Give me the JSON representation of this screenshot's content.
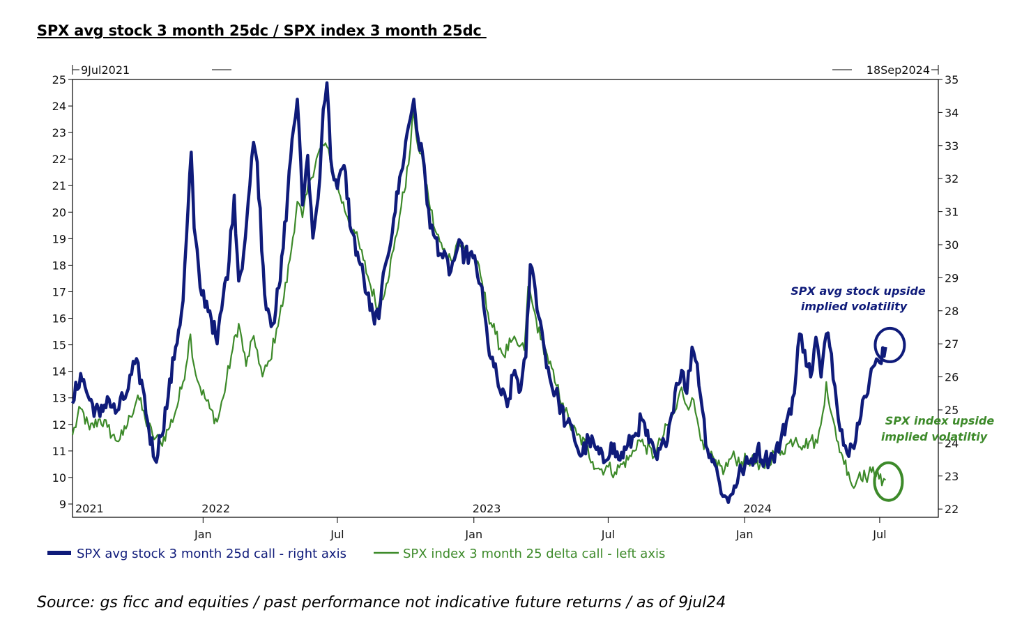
{
  "title": "SPX avg stock 3 month 25dc / SPX index 3 month 25dc ",
  "source": "Source: gs ficc and equities / past performance not indicative future returns / as of 9jul24",
  "chart_data": {
    "type": "line",
    "date_range_labels": {
      "start": "9Jul2021",
      "end": "18Sep2024"
    },
    "x_range": [
      "2021-07-09",
      "2024-09-18"
    ],
    "year_labels": [
      {
        "label": "2021",
        "date": "2021-07-09"
      },
      {
        "label": "2022",
        "date": "2022-01-01"
      },
      {
        "label": "2023",
        "date": "2023-01-01"
      },
      {
        "label": "2024",
        "date": "2024-01-01"
      }
    ],
    "month_ticks": [
      {
        "label": "Jan",
        "date": "2022-01-01"
      },
      {
        "label": "Jul",
        "date": "2022-07-01"
      },
      {
        "label": "Jan",
        "date": "2023-01-01"
      },
      {
        "label": "Jul",
        "date": "2023-07-01"
      },
      {
        "label": "Jan",
        "date": "2024-01-01"
      },
      {
        "label": "Jul",
        "date": "2024-07-01"
      }
    ],
    "left_axis": {
      "min": 8.5,
      "max": 25,
      "ticks": [
        "9",
        "10",
        "11",
        "12",
        "13",
        "14",
        "15",
        "16",
        "17",
        "18",
        "19",
        "20",
        "21",
        "22",
        "23",
        "24",
        "25"
      ]
    },
    "right_axis": {
      "min": 21.75,
      "max": 35,
      "ticks": [
        "22",
        "23",
        "24",
        "25",
        "26",
        "27",
        "28",
        "29",
        "30",
        "31",
        "32",
        "33",
        "34",
        "35"
      ]
    },
    "series": [
      {
        "name": "SPX avg stock 3 month 25d call - right axis",
        "axis": "right",
        "color": "#0f1b7a",
        "points": [
          [
            "2021-07-09",
            25.2
          ],
          [
            "2021-07-20",
            26.1
          ],
          [
            "2021-08-01",
            25.3
          ],
          [
            "2021-08-15",
            24.8
          ],
          [
            "2021-08-25",
            25.4
          ],
          [
            "2021-09-05",
            24.9
          ],
          [
            "2021-09-20",
            25.5
          ],
          [
            "2021-10-01",
            26.4
          ],
          [
            "2021-10-10",
            25.9
          ],
          [
            "2021-10-20",
            24.4
          ],
          [
            "2021-10-28",
            23.5
          ],
          [
            "2021-11-05",
            24.2
          ],
          [
            "2021-11-15",
            25.4
          ],
          [
            "2021-11-25",
            26.9
          ],
          [
            "2021-12-05",
            28.3
          ],
          [
            "2021-12-12",
            31.2
          ],
          [
            "2021-12-16",
            32.8
          ],
          [
            "2021-12-20",
            30.5
          ],
          [
            "2021-12-28",
            28.7
          ],
          [
            "2022-01-10",
            28.0
          ],
          [
            "2022-01-20",
            27.0
          ],
          [
            "2022-01-28",
            28.4
          ],
          [
            "2022-02-05",
            29.5
          ],
          [
            "2022-02-12",
            31.5
          ],
          [
            "2022-02-18",
            28.9
          ],
          [
            "2022-02-25",
            29.8
          ],
          [
            "2022-03-05",
            31.8
          ],
          [
            "2022-03-10",
            33.1
          ],
          [
            "2022-03-15",
            32.5
          ],
          [
            "2022-03-25",
            28.5
          ],
          [
            "2022-04-05",
            27.6
          ],
          [
            "2022-04-15",
            28.9
          ],
          [
            "2022-04-25",
            31.5
          ],
          [
            "2022-05-01",
            33.2
          ],
          [
            "2022-05-08",
            34.4
          ],
          [
            "2022-05-15",
            31.2
          ],
          [
            "2022-05-22",
            32.7
          ],
          [
            "2022-05-29",
            30.2
          ],
          [
            "2022-06-05",
            31.4
          ],
          [
            "2022-06-12",
            34.1
          ],
          [
            "2022-06-17",
            34.9
          ],
          [
            "2022-06-22",
            32.6
          ],
          [
            "2022-07-01",
            31.7
          ],
          [
            "2022-07-10",
            32.4
          ],
          [
            "2022-07-20",
            30.4
          ],
          [
            "2022-08-01",
            29.4
          ],
          [
            "2022-08-10",
            28.5
          ],
          [
            "2022-08-20",
            27.6
          ],
          [
            "2022-08-28",
            28.2
          ],
          [
            "2022-09-05",
            29.5
          ],
          [
            "2022-09-15",
            30.8
          ],
          [
            "2022-09-25",
            32.2
          ],
          [
            "2022-10-05",
            33.6
          ],
          [
            "2022-10-12",
            34.4
          ],
          [
            "2022-10-18",
            33.2
          ],
          [
            "2022-10-26",
            32.4
          ],
          [
            "2022-11-03",
            30.5
          ],
          [
            "2022-11-10",
            30.2
          ],
          [
            "2022-11-20",
            29.6
          ],
          [
            "2022-12-01",
            29.2
          ],
          [
            "2022-12-10",
            29.9
          ],
          [
            "2022-12-20",
            29.7
          ],
          [
            "2022-12-31",
            29.6
          ],
          [
            "2023-01-10",
            28.8
          ],
          [
            "2023-01-20",
            27.0
          ],
          [
            "2023-01-28",
            26.3
          ],
          [
            "2023-02-05",
            25.6
          ],
          [
            "2023-02-15",
            25.1
          ],
          [
            "2023-02-25",
            26.2
          ],
          [
            "2023-03-05",
            25.6
          ],
          [
            "2023-03-12",
            26.6
          ],
          [
            "2023-03-18",
            29.4
          ],
          [
            "2023-03-25",
            28.6
          ],
          [
            "2023-04-05",
            27.0
          ],
          [
            "2023-04-15",
            25.8
          ],
          [
            "2023-04-25",
            25.3
          ],
          [
            "2023-05-05",
            24.6
          ],
          [
            "2023-05-15",
            24.3
          ],
          [
            "2023-05-25",
            23.6
          ],
          [
            "2023-06-05",
            24.1
          ],
          [
            "2023-06-15",
            23.8
          ],
          [
            "2023-06-25",
            23.4
          ],
          [
            "2023-07-05",
            24.0
          ],
          [
            "2023-07-15",
            23.5
          ],
          [
            "2023-07-25",
            23.8
          ],
          [
            "2023-08-05",
            24.2
          ],
          [
            "2023-08-15",
            24.7
          ],
          [
            "2023-08-25",
            24.0
          ],
          [
            "2023-09-05",
            23.5
          ],
          [
            "2023-09-15",
            24.0
          ],
          [
            "2023-09-25",
            24.9
          ],
          [
            "2023-10-01",
            25.8
          ],
          [
            "2023-10-08",
            26.2
          ],
          [
            "2023-10-15",
            25.5
          ],
          [
            "2023-10-22",
            26.9
          ],
          [
            "2023-10-29",
            26.4
          ],
          [
            "2023-11-05",
            25.0
          ],
          [
            "2023-11-12",
            23.8
          ],
          [
            "2023-11-20",
            23.5
          ],
          [
            "2023-11-28",
            22.8
          ],
          [
            "2023-12-05",
            22.4
          ],
          [
            "2023-12-10",
            22.2
          ],
          [
            "2023-12-18",
            22.7
          ],
          [
            "2023-12-28",
            23.2
          ],
          [
            "2024-01-08",
            23.4
          ],
          [
            "2024-01-18",
            23.8
          ],
          [
            "2024-01-28",
            23.5
          ],
          [
            "2024-02-08",
            23.6
          ],
          [
            "2024-02-18",
            24.0
          ],
          [
            "2024-02-28",
            24.8
          ],
          [
            "2024-03-08",
            25.5
          ],
          [
            "2024-03-15",
            27.3
          ],
          [
            "2024-03-22",
            26.8
          ],
          [
            "2024-03-30",
            26.0
          ],
          [
            "2024-04-06",
            27.2
          ],
          [
            "2024-04-13",
            26.0
          ],
          [
            "2024-04-20",
            27.3
          ],
          [
            "2024-04-27",
            26.7
          ],
          [
            "2024-05-04",
            25.2
          ],
          [
            "2024-05-11",
            24.4
          ],
          [
            "2024-05-18",
            23.7
          ],
          [
            "2024-05-25",
            23.9
          ],
          [
            "2024-06-01",
            24.6
          ],
          [
            "2024-06-08",
            25.3
          ],
          [
            "2024-06-15",
            25.5
          ],
          [
            "2024-06-22",
            26.3
          ],
          [
            "2024-06-29",
            26.5
          ],
          [
            "2024-07-09",
            26.9
          ]
        ]
      },
      {
        "name": "SPX index 3 month 25 delta call - left axis",
        "axis": "left",
        "color": "#3d8a2a",
        "points": [
          [
            "2021-07-09",
            11.6
          ],
          [
            "2021-07-20",
            12.6
          ],
          [
            "2021-08-01",
            11.8
          ],
          [
            "2021-08-15",
            12.2
          ],
          [
            "2021-08-25",
            11.9
          ],
          [
            "2021-09-05",
            11.4
          ],
          [
            "2021-09-15",
            11.6
          ],
          [
            "2021-09-25",
            12.3
          ],
          [
            "2021-10-05",
            13.1
          ],
          [
            "2021-10-15",
            12.2
          ],
          [
            "2021-10-25",
            11.6
          ],
          [
            "2021-11-05",
            11.3
          ],
          [
            "2021-11-15",
            11.8
          ],
          [
            "2021-11-25",
            12.5
          ],
          [
            "2021-12-05",
            13.6
          ],
          [
            "2021-12-15",
            15.4
          ],
          [
            "2021-12-20",
            14.2
          ],
          [
            "2021-12-28",
            13.4
          ],
          [
            "2022-01-10",
            12.6
          ],
          [
            "2022-01-20",
            12.1
          ],
          [
            "2022-01-28",
            13.0
          ],
          [
            "2022-02-08",
            14.6
          ],
          [
            "2022-02-18",
            15.8
          ],
          [
            "2022-02-28",
            14.2
          ],
          [
            "2022-03-08",
            15.2
          ],
          [
            "2022-03-15",
            14.8
          ],
          [
            "2022-03-22",
            13.8
          ],
          [
            "2022-04-01",
            14.4
          ],
          [
            "2022-04-10",
            15.6
          ],
          [
            "2022-04-20",
            16.8
          ],
          [
            "2022-04-28",
            18.2
          ],
          [
            "2022-05-08",
            20.4
          ],
          [
            "2022-05-15",
            19.8
          ],
          [
            "2022-05-25",
            21.2
          ],
          [
            "2022-06-05",
            22.2
          ],
          [
            "2022-06-15",
            22.6
          ],
          [
            "2022-06-25",
            21.5
          ],
          [
            "2022-07-05",
            20.6
          ],
          [
            "2022-07-15",
            19.8
          ],
          [
            "2022-07-25",
            19.2
          ],
          [
            "2022-08-05",
            18.2
          ],
          [
            "2022-08-15",
            17.2
          ],
          [
            "2022-08-25",
            16.4
          ],
          [
            "2022-09-05",
            17.3
          ],
          [
            "2022-09-15",
            18.6
          ],
          [
            "2022-09-25",
            20.2
          ],
          [
            "2022-10-05",
            21.8
          ],
          [
            "2022-10-12",
            23.8
          ],
          [
            "2022-10-18",
            22.4
          ],
          [
            "2022-10-25",
            21.7
          ],
          [
            "2022-11-01",
            20.5
          ],
          [
            "2022-11-10",
            19.3
          ],
          [
            "2022-11-20",
            18.6
          ],
          [
            "2022-12-01",
            18.2
          ],
          [
            "2022-12-10",
            18.9
          ],
          [
            "2022-12-20",
            18.6
          ],
          [
            "2022-12-31",
            18.4
          ],
          [
            "2023-01-10",
            17.6
          ],
          [
            "2023-01-20",
            16.2
          ],
          [
            "2023-01-30",
            15.4
          ],
          [
            "2023-02-10",
            14.6
          ],
          [
            "2023-02-20",
            15.1
          ],
          [
            "2023-03-01",
            15.0
          ],
          [
            "2023-03-10",
            14.8
          ],
          [
            "2023-03-15",
            17.2
          ],
          [
            "2023-03-22",
            16.4
          ],
          [
            "2023-04-01",
            15.2
          ],
          [
            "2023-04-10",
            14.6
          ],
          [
            "2023-04-20",
            13.6
          ],
          [
            "2023-05-01",
            12.8
          ],
          [
            "2023-05-10",
            12.0
          ],
          [
            "2023-05-20",
            11.6
          ],
          [
            "2023-06-01",
            11.2
          ],
          [
            "2023-06-10",
            10.6
          ],
          [
            "2023-06-20",
            10.3
          ],
          [
            "2023-07-01",
            10.4
          ],
          [
            "2023-07-10",
            10.2
          ],
          [
            "2023-07-20",
            10.5
          ],
          [
            "2023-08-01",
            10.8
          ],
          [
            "2023-08-10",
            11.4
          ],
          [
            "2023-08-20",
            11.2
          ],
          [
            "2023-09-01",
            10.8
          ],
          [
            "2023-09-10",
            11.4
          ],
          [
            "2023-09-20",
            12.0
          ],
          [
            "2023-10-01",
            12.6
          ],
          [
            "2023-10-08",
            13.4
          ],
          [
            "2023-10-15",
            12.7
          ],
          [
            "2023-10-22",
            13.0
          ],
          [
            "2023-10-29",
            12.2
          ],
          [
            "2023-11-05",
            11.4
          ],
          [
            "2023-11-15",
            10.8
          ],
          [
            "2023-11-25",
            10.4
          ],
          [
            "2023-12-05",
            10.3
          ],
          [
            "2023-12-15",
            10.8
          ],
          [
            "2023-12-28",
            10.6
          ],
          [
            "2024-01-10",
            10.7
          ],
          [
            "2024-01-20",
            10.3
          ],
          [
            "2024-02-01",
            10.6
          ],
          [
            "2024-02-10",
            10.9
          ],
          [
            "2024-02-20",
            11.0
          ],
          [
            "2024-03-01",
            11.3
          ],
          [
            "2024-03-10",
            11.5
          ],
          [
            "2024-03-20",
            11.2
          ],
          [
            "2024-03-30",
            11.4
          ],
          [
            "2024-04-08",
            11.3
          ],
          [
            "2024-04-15",
            12.4
          ],
          [
            "2024-04-20",
            13.6
          ],
          [
            "2024-04-27",
            12.4
          ],
          [
            "2024-05-04",
            11.4
          ],
          [
            "2024-05-12",
            10.8
          ],
          [
            "2024-05-20",
            10.2
          ],
          [
            "2024-05-27",
            9.6
          ],
          [
            "2024-06-04",
            10.2
          ],
          [
            "2024-06-12",
            10.0
          ],
          [
            "2024-06-20",
            10.2
          ],
          [
            "2024-06-28",
            10.3
          ],
          [
            "2024-07-04",
            9.7
          ],
          [
            "2024-07-09",
            9.9
          ]
        ]
      }
    ],
    "annotations": [
      {
        "id": "stock",
        "lines": [
          "SPX avg stock upside",
          "implied volatility"
        ],
        "color": "#0f1b7a"
      },
      {
        "id": "index",
        "lines": [
          "SPX index upside",
          "implied volatiltiy"
        ],
        "color": "#3d8a2a"
      }
    ],
    "legend": "bottom-left"
  }
}
